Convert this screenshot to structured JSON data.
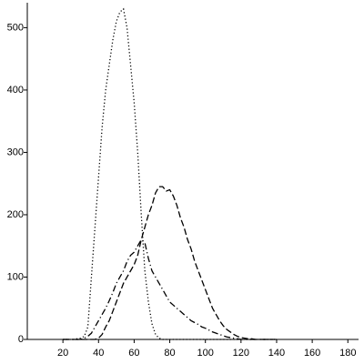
{
  "chart_data": {
    "type": "line",
    "x": [
      20,
      22,
      24,
      26,
      28,
      30,
      32,
      34,
      36,
      38,
      40,
      42,
      44,
      46,
      48,
      50,
      52,
      54,
      56,
      58,
      60,
      62,
      64,
      66,
      68,
      70,
      72,
      74,
      76,
      78,
      80,
      82,
      84,
      86,
      88,
      90,
      92,
      94,
      96,
      98,
      100,
      102,
      104,
      106,
      108,
      110,
      112,
      114,
      116,
      118,
      120,
      122,
      124,
      126,
      128,
      130,
      132,
      134,
      136,
      138,
      140
    ],
    "series": [
      {
        "color": "#000000",
        "dash": "dotted",
        "values": [
          0,
          0,
          0,
          0,
          1,
          2,
          5,
          20,
          100,
          180,
          260,
          340,
          400,
          440,
          480,
          510,
          525,
          530,
          500,
          440,
          380,
          300,
          200,
          110,
          60,
          25,
          8,
          2,
          0,
          0,
          0,
          0,
          0,
          0,
          0,
          0,
          0,
          0,
          0,
          0,
          0,
          0,
          0,
          0,
          0,
          0,
          0,
          0,
          0,
          0,
          0,
          0,
          0,
          0,
          0,
          0,
          0,
          0,
          0,
          0,
          0
        ]
      },
      {
        "color": "#000000",
        "dash": "dashed",
        "values": [
          0,
          0,
          0,
          0,
          0,
          0,
          0,
          0,
          0,
          0,
          2,
          8,
          20,
          30,
          45,
          60,
          75,
          90,
          100,
          110,
          120,
          135,
          160,
          180,
          200,
          215,
          235,
          245,
          245,
          238,
          240,
          230,
          215,
          195,
          180,
          160,
          145,
          125,
          110,
          95,
          80,
          65,
          50,
          40,
          30,
          22,
          16,
          12,
          8,
          5,
          3,
          2,
          1,
          1,
          0,
          0,
          0,
          0,
          0,
          0,
          0
        ]
      },
      {
        "color": "#000000",
        "dash": "dashdot",
        "values": [
          0,
          0,
          0,
          0,
          0,
          0,
          2,
          5,
          10,
          20,
          30,
          40,
          50,
          62,
          75,
          90,
          100,
          110,
          125,
          135,
          140,
          150,
          160,
          155,
          130,
          110,
          100,
          90,
          80,
          70,
          60,
          55,
          50,
          45,
          40,
          35,
          30,
          27,
          24,
          20,
          18,
          15,
          12,
          10,
          8,
          6,
          4,
          3,
          2,
          1,
          0,
          0,
          0,
          0,
          0,
          0,
          0,
          0,
          0,
          0,
          0
        ]
      }
    ],
    "xlim": [
      0,
      186
    ],
    "ylim": [
      0,
      540
    ],
    "xticks": [
      20,
      40,
      60,
      80,
      100,
      120,
      140,
      160,
      180
    ],
    "yticks": [
      0,
      100,
      200,
      300,
      400,
      500
    ],
    "grid": false
  }
}
